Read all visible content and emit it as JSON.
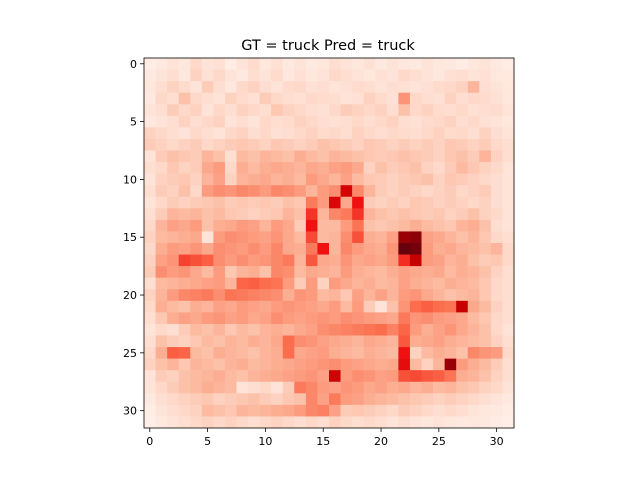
{
  "chart_data": {
    "type": "heatmap",
    "title": "GT = truck Pred = truck",
    "xlabel": "",
    "ylabel": "",
    "rows": 32,
    "cols": 32,
    "colormap": "Reds",
    "value_range": [
      0,
      1
    ],
    "xlim": [
      -0.5,
      31.5
    ],
    "ylim": [
      31.5,
      -0.5
    ],
    "x_ticks": [
      0,
      5,
      10,
      15,
      20,
      25,
      30
    ],
    "y_ticks": [
      0,
      5,
      10,
      15,
      20,
      25,
      30
    ],
    "x_tick_labels": [
      "0",
      "5",
      "10",
      "15",
      "20",
      "25",
      "30"
    ],
    "y_tick_labels": [
      "0",
      "5",
      "10",
      "15",
      "20",
      "25",
      "30"
    ],
    "grid": false,
    "colors": {
      "low": "#fff5f0",
      "mid": "#fb6a4a",
      "high": "#67000d"
    },
    "values": [
      [
        0.03,
        0.04,
        0.06,
        0.05,
        0.1,
        0.06,
        0.07,
        0.03,
        0.06,
        0.09,
        0.05,
        0.07,
        0.04,
        0.06,
        0.04,
        0.05,
        0.08,
        0.06,
        0.05,
        0.07,
        0.04,
        0.06,
        0.05,
        0.04,
        0.06,
        0.05,
        0.04,
        0.03,
        0.05,
        0.06,
        0.04,
        0.03
      ],
      [
        0.04,
        0.06,
        0.08,
        0.05,
        0.12,
        0.07,
        0.1,
        0.06,
        0.04,
        0.08,
        0.06,
        0.09,
        0.05,
        0.07,
        0.05,
        0.06,
        0.1,
        0.08,
        0.06,
        0.05,
        0.07,
        0.06,
        0.1,
        0.08,
        0.06,
        0.05,
        0.07,
        0.08,
        0.06,
        0.07,
        0.05,
        0.04
      ],
      [
        0.05,
        0.08,
        0.12,
        0.09,
        0.06,
        0.14,
        0.08,
        0.05,
        0.1,
        0.12,
        0.08,
        0.06,
        0.09,
        0.1,
        0.07,
        0.08,
        0.06,
        0.07,
        0.09,
        0.08,
        0.06,
        0.08,
        0.07,
        0.06,
        0.07,
        0.09,
        0.1,
        0.12,
        0.22,
        0.08,
        0.06,
        0.05
      ],
      [
        0.04,
        0.1,
        0.08,
        0.18,
        0.1,
        0.08,
        0.06,
        0.12,
        0.09,
        0.07,
        0.14,
        0.1,
        0.08,
        0.07,
        0.1,
        0.09,
        0.08,
        0.06,
        0.07,
        0.12,
        0.09,
        0.07,
        0.32,
        0.1,
        0.08,
        0.07,
        0.12,
        0.08,
        0.1,
        0.09,
        0.07,
        0.05
      ],
      [
        0.06,
        0.08,
        0.14,
        0.1,
        0.12,
        0.06,
        0.1,
        0.08,
        0.12,
        0.1,
        0.08,
        0.16,
        0.12,
        0.1,
        0.08,
        0.07,
        0.1,
        0.14,
        0.12,
        0.1,
        0.12,
        0.08,
        0.18,
        0.1,
        0.12,
        0.09,
        0.08,
        0.1,
        0.07,
        0.08,
        0.09,
        0.06
      ],
      [
        0.05,
        0.06,
        0.08,
        0.12,
        0.08,
        0.1,
        0.12,
        0.06,
        0.08,
        0.06,
        0.1,
        0.08,
        0.09,
        0.12,
        0.1,
        0.08,
        0.07,
        0.08,
        0.1,
        0.08,
        0.1,
        0.12,
        0.08,
        0.07,
        0.09,
        0.1,
        0.12,
        0.08,
        0.1,
        0.07,
        0.06,
        0.05
      ],
      [
        0.12,
        0.1,
        0.08,
        0.06,
        0.1,
        0.08,
        0.06,
        0.1,
        0.12,
        0.08,
        0.1,
        0.07,
        0.08,
        0.1,
        0.12,
        0.09,
        0.1,
        0.08,
        0.12,
        0.1,
        0.08,
        0.1,
        0.09,
        0.08,
        0.1,
        0.12,
        0.09,
        0.1,
        0.08,
        0.12,
        0.08,
        0.06
      ],
      [
        0.14,
        0.12,
        0.1,
        0.12,
        0.14,
        0.1,
        0.12,
        0.14,
        0.16,
        0.14,
        0.12,
        0.16,
        0.14,
        0.12,
        0.14,
        0.18,
        0.16,
        0.14,
        0.12,
        0.16,
        0.14,
        0.12,
        0.14,
        0.12,
        0.14,
        0.12,
        0.16,
        0.14,
        0.12,
        0.14,
        0.1,
        0.08
      ],
      [
        0.06,
        0.14,
        0.18,
        0.16,
        0.14,
        0.22,
        0.18,
        0.08,
        0.2,
        0.18,
        0.22,
        0.2,
        0.18,
        0.24,
        0.2,
        0.18,
        0.22,
        0.2,
        0.18,
        0.16,
        0.14,
        0.16,
        0.18,
        0.16,
        0.14,
        0.12,
        0.16,
        0.18,
        0.14,
        0.22,
        0.12,
        0.08
      ],
      [
        0.08,
        0.1,
        0.16,
        0.12,
        0.14,
        0.26,
        0.3,
        0.1,
        0.24,
        0.2,
        0.24,
        0.26,
        0.24,
        0.22,
        0.26,
        0.24,
        0.28,
        0.3,
        0.26,
        0.12,
        0.18,
        0.14,
        0.16,
        0.18,
        0.12,
        0.1,
        0.14,
        0.2,
        0.16,
        0.12,
        0.1,
        0.06
      ],
      [
        0.06,
        0.12,
        0.14,
        0.16,
        0.12,
        0.22,
        0.28,
        0.12,
        0.22,
        0.24,
        0.26,
        0.22,
        0.24,
        0.2,
        0.3,
        0.26,
        0.22,
        0.28,
        0.2,
        0.16,
        0.14,
        0.12,
        0.14,
        0.16,
        0.18,
        0.12,
        0.16,
        0.14,
        0.12,
        0.1,
        0.08,
        0.06
      ],
      [
        0.08,
        0.14,
        0.12,
        0.18,
        0.1,
        0.3,
        0.34,
        0.32,
        0.36,
        0.34,
        0.3,
        0.36,
        0.34,
        0.3,
        0.22,
        0.3,
        0.34,
        0.8,
        0.36,
        0.22,
        0.14,
        0.12,
        0.14,
        0.12,
        0.1,
        0.12,
        0.14,
        0.1,
        0.12,
        0.14,
        0.08,
        0.06
      ],
      [
        0.06,
        0.1,
        0.14,
        0.12,
        0.14,
        0.16,
        0.18,
        0.14,
        0.16,
        0.14,
        0.16,
        0.14,
        0.18,
        0.16,
        0.4,
        0.3,
        0.78,
        0.26,
        0.7,
        0.14,
        0.12,
        0.14,
        0.12,
        0.16,
        0.14,
        0.12,
        0.14,
        0.12,
        0.1,
        0.12,
        0.08,
        0.06
      ],
      [
        0.08,
        0.14,
        0.22,
        0.2,
        0.22,
        0.18,
        0.2,
        0.16,
        0.14,
        0.12,
        0.14,
        0.16,
        0.22,
        0.18,
        0.6,
        0.22,
        0.36,
        0.4,
        0.6,
        0.22,
        0.18,
        0.16,
        0.18,
        0.16,
        0.14,
        0.16,
        0.12,
        0.14,
        0.18,
        0.12,
        0.1,
        0.06
      ],
      [
        0.1,
        0.22,
        0.28,
        0.26,
        0.3,
        0.18,
        0.24,
        0.26,
        0.3,
        0.28,
        0.22,
        0.3,
        0.26,
        0.14,
        0.7,
        0.2,
        0.2,
        0.3,
        0.42,
        0.18,
        0.16,
        0.18,
        0.2,
        0.24,
        0.2,
        0.18,
        0.16,
        0.22,
        0.24,
        0.18,
        0.08,
        0.06
      ],
      [
        0.12,
        0.2,
        0.22,
        0.24,
        0.26,
        0.06,
        0.3,
        0.34,
        0.32,
        0.3,
        0.28,
        0.32,
        0.26,
        0.2,
        0.54,
        0.2,
        0.22,
        0.34,
        0.52,
        0.24,
        0.22,
        0.28,
        0.92,
        0.94,
        0.28,
        0.26,
        0.22,
        0.18,
        0.22,
        0.16,
        0.1,
        0.08
      ],
      [
        0.1,
        0.24,
        0.3,
        0.28,
        0.32,
        0.26,
        0.34,
        0.32,
        0.3,
        0.34,
        0.3,
        0.36,
        0.26,
        0.24,
        0.4,
        0.7,
        0.22,
        0.36,
        0.3,
        0.26,
        0.24,
        0.32,
        1.0,
        0.98,
        0.3,
        0.24,
        0.26,
        0.22,
        0.2,
        0.18,
        0.22,
        0.1
      ],
      [
        0.12,
        0.28,
        0.32,
        0.56,
        0.52,
        0.48,
        0.34,
        0.3,
        0.34,
        0.3,
        0.32,
        0.36,
        0.4,
        0.22,
        0.5,
        0.26,
        0.24,
        0.32,
        0.26,
        0.28,
        0.26,
        0.3,
        0.62,
        0.84,
        0.3,
        0.28,
        0.22,
        0.24,
        0.18,
        0.14,
        0.16,
        0.1
      ],
      [
        0.14,
        0.34,
        0.3,
        0.32,
        0.26,
        0.2,
        0.3,
        0.16,
        0.22,
        0.24,
        0.18,
        0.36,
        0.34,
        0.2,
        0.26,
        0.24,
        0.22,
        0.3,
        0.24,
        0.22,
        0.2,
        0.24,
        0.28,
        0.26,
        0.24,
        0.26,
        0.2,
        0.24,
        0.22,
        0.18,
        0.12,
        0.08
      ],
      [
        0.08,
        0.2,
        0.22,
        0.24,
        0.26,
        0.28,
        0.3,
        0.22,
        0.46,
        0.48,
        0.44,
        0.42,
        0.3,
        0.14,
        0.3,
        0.12,
        0.3,
        0.26,
        0.22,
        0.24,
        0.2,
        0.22,
        0.28,
        0.24,
        0.22,
        0.2,
        0.24,
        0.22,
        0.2,
        0.16,
        0.1,
        0.08
      ],
      [
        0.12,
        0.22,
        0.3,
        0.36,
        0.38,
        0.4,
        0.34,
        0.42,
        0.4,
        0.38,
        0.36,
        0.34,
        0.24,
        0.32,
        0.3,
        0.2,
        0.22,
        0.16,
        0.28,
        0.22,
        0.28,
        0.22,
        0.3,
        0.32,
        0.26,
        0.22,
        0.18,
        0.2,
        0.22,
        0.16,
        0.1,
        0.08
      ],
      [
        0.1,
        0.24,
        0.2,
        0.18,
        0.24,
        0.22,
        0.28,
        0.26,
        0.3,
        0.28,
        0.26,
        0.3,
        0.32,
        0.3,
        0.28,
        0.26,
        0.3,
        0.2,
        0.3,
        0.14,
        0.06,
        0.18,
        0.32,
        0.44,
        0.48,
        0.44,
        0.42,
        0.84,
        0.26,
        0.2,
        0.12,
        0.08
      ],
      [
        0.08,
        0.16,
        0.24,
        0.28,
        0.26,
        0.3,
        0.32,
        0.28,
        0.3,
        0.26,
        0.28,
        0.34,
        0.3,
        0.28,
        0.3,
        0.32,
        0.3,
        0.34,
        0.32,
        0.3,
        0.28,
        0.26,
        0.4,
        0.32,
        0.34,
        0.3,
        0.28,
        0.26,
        0.2,
        0.16,
        0.1,
        0.08
      ],
      [
        0.06,
        0.1,
        0.08,
        0.14,
        0.2,
        0.18,
        0.22,
        0.16,
        0.2,
        0.18,
        0.22,
        0.24,
        0.22,
        0.26,
        0.28,
        0.34,
        0.36,
        0.38,
        0.4,
        0.42,
        0.44,
        0.38,
        0.46,
        0.3,
        0.24,
        0.28,
        0.32,
        0.26,
        0.22,
        0.18,
        0.1,
        0.06
      ],
      [
        0.08,
        0.18,
        0.14,
        0.12,
        0.16,
        0.2,
        0.18,
        0.22,
        0.2,
        0.24,
        0.22,
        0.26,
        0.44,
        0.34,
        0.32,
        0.28,
        0.26,
        0.24,
        0.22,
        0.26,
        0.24,
        0.22,
        0.5,
        0.24,
        0.26,
        0.28,
        0.24,
        0.22,
        0.2,
        0.18,
        0.12,
        0.08
      ],
      [
        0.1,
        0.24,
        0.48,
        0.46,
        0.2,
        0.18,
        0.24,
        0.22,
        0.2,
        0.18,
        0.22,
        0.24,
        0.44,
        0.26,
        0.28,
        0.3,
        0.24,
        0.22,
        0.2,
        0.24,
        0.22,
        0.2,
        0.7,
        0.12,
        0.2,
        0.24,
        0.22,
        0.18,
        0.36,
        0.32,
        0.3,
        0.1
      ],
      [
        0.12,
        0.18,
        0.22,
        0.16,
        0.22,
        0.2,
        0.18,
        0.22,
        0.24,
        0.2,
        0.22,
        0.24,
        0.26,
        0.28,
        0.3,
        0.32,
        0.34,
        0.3,
        0.28,
        0.26,
        0.24,
        0.26,
        0.74,
        0.2,
        0.12,
        0.22,
        0.92,
        0.3,
        0.24,
        0.2,
        0.14,
        0.08
      ],
      [
        0.06,
        0.14,
        0.12,
        0.18,
        0.2,
        0.22,
        0.24,
        0.2,
        0.18,
        0.22,
        0.24,
        0.26,
        0.28,
        0.3,
        0.32,
        0.28,
        0.82,
        0.3,
        0.34,
        0.32,
        0.28,
        0.3,
        0.52,
        0.54,
        0.5,
        0.48,
        0.42,
        0.24,
        0.22,
        0.18,
        0.12,
        0.08
      ],
      [
        0.06,
        0.1,
        0.14,
        0.18,
        0.2,
        0.24,
        0.22,
        0.2,
        0.06,
        0.08,
        0.1,
        0.06,
        0.14,
        0.4,
        0.36,
        0.3,
        0.28,
        0.32,
        0.3,
        0.26,
        0.28,
        0.24,
        0.26,
        0.22,
        0.24,
        0.2,
        0.22,
        0.18,
        0.16,
        0.12,
        0.1,
        0.06
      ],
      [
        0.04,
        0.08,
        0.1,
        0.12,
        0.14,
        0.16,
        0.12,
        0.14,
        0.16,
        0.18,
        0.14,
        0.12,
        0.16,
        0.18,
        0.36,
        0.28,
        0.4,
        0.3,
        0.28,
        0.24,
        0.22,
        0.2,
        0.18,
        0.16,
        0.14,
        0.12,
        0.14,
        0.12,
        0.1,
        0.08,
        0.06,
        0.04
      ],
      [
        0.03,
        0.06,
        0.08,
        0.1,
        0.12,
        0.2,
        0.18,
        0.16,
        0.22,
        0.2,
        0.22,
        0.24,
        0.26,
        0.3,
        0.36,
        0.38,
        0.28,
        0.14,
        0.16,
        0.14,
        0.12,
        0.1,
        0.14,
        0.12,
        0.1,
        0.08,
        0.1,
        0.08,
        0.06,
        0.05,
        0.04,
        0.03
      ],
      [
        0.02,
        0.04,
        0.06,
        0.08,
        0.1,
        0.12,
        0.1,
        0.12,
        0.1,
        0.08,
        0.1,
        0.12,
        0.1,
        0.08,
        0.1,
        0.08,
        0.12,
        0.1,
        0.08,
        0.1,
        0.08,
        0.06,
        0.08,
        0.06,
        0.05,
        0.06,
        0.05,
        0.04,
        0.05,
        0.04,
        0.03,
        0.02
      ]
    ]
  }
}
